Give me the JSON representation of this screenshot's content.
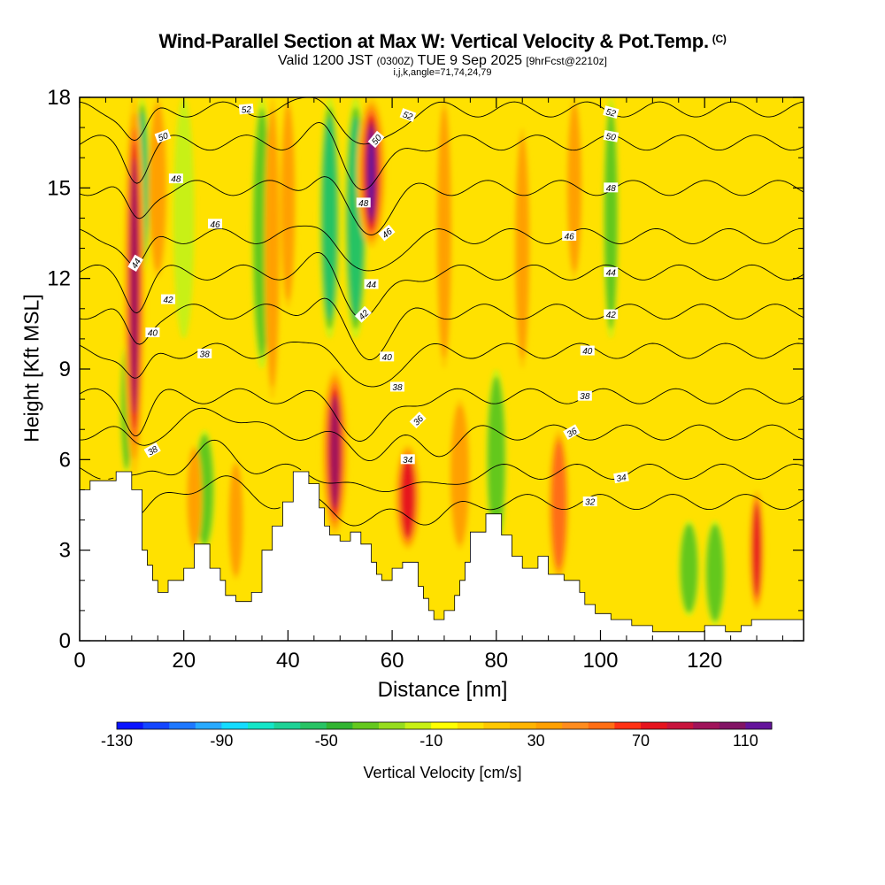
{
  "title": {
    "main": "Wind-Parallel Section at Max W: Vertical Velocity & Pot.Temp.",
    "copyright": "(C)",
    "valid_prefix": "Valid 1200 JST",
    "valid_zulu": "(0300Z)",
    "valid_date": "TUE 9 Sep 2025",
    "forecast": "[9hrFcst@2210z]",
    "indices": "i,j,k,angle=71,74,24,79"
  },
  "chart_data": {
    "type": "heatmap",
    "title": "Wind-Parallel Section at Max W: Vertical Velocity & Pot.Temp.",
    "xlabel": "Distance [nm]",
    "ylabel": "Height [Kft MSL]",
    "xlim": [
      0,
      139
    ],
    "ylim": [
      0,
      18
    ],
    "x_ticks": [
      0,
      20,
      40,
      60,
      80,
      100,
      120
    ],
    "y_ticks": [
      0,
      3,
      6,
      9,
      12,
      15,
      18
    ],
    "x_tick_labels": [
      "0",
      "20",
      "40",
      "60",
      "80",
      "100",
      "120"
    ],
    "y_tick_labels": [
      "0",
      "3",
      "6",
      "9",
      "12",
      "15",
      "18"
    ],
    "colorbar": {
      "label": "Vertical Velocity [cm/s]",
      "min": -130,
      "max": 120,
      "step": 10,
      "tick_values": [
        -130,
        -90,
        -50,
        -10,
        30,
        70,
        110
      ],
      "tick_labels": [
        "-130",
        "-90",
        "-50",
        "-10",
        "30",
        "70",
        "110"
      ],
      "colors": [
        "#0a14ff",
        "#1446ff",
        "#1e78ff",
        "#28aaff",
        "#14dcff",
        "#14e6c8",
        "#1ed296",
        "#28c364",
        "#32b432",
        "#64c81e",
        "#96dc1e",
        "#c8f014",
        "#ffff00",
        "#ffe100",
        "#ffc800",
        "#ffb400",
        "#ffa000",
        "#ff8c1e",
        "#ff6e14",
        "#ff3214",
        "#e6141e",
        "#c8143c",
        "#a0145a",
        "#821464",
        "#64149b"
      ]
    },
    "updrafts": [
      {
        "x": 10.5,
        "w": 2.0,
        "ybot": 5.5,
        "ytop": 18,
        "peak": 90
      },
      {
        "x": 15,
        "w": 1.8,
        "ybot": 12,
        "ytop": 18,
        "peak": 30
      },
      {
        "x": 22,
        "w": 1.5,
        "ybot": 3,
        "ytop": 6.5,
        "peak": 30
      },
      {
        "x": 30,
        "w": 1.5,
        "ybot": 2,
        "ytop": 6,
        "peak": 30
      },
      {
        "x": 37,
        "w": 1.5,
        "ybot": 8,
        "ytop": 18,
        "peak": 30
      },
      {
        "x": 40,
        "w": 1.5,
        "ybot": 11,
        "ytop": 18,
        "peak": 30
      },
      {
        "x": 49,
        "w": 2.5,
        "ybot": 3.5,
        "ytop": 9,
        "peak": 90
      },
      {
        "x": 56,
        "w": 2.8,
        "ybot": 13,
        "ytop": 18,
        "peak": 110
      },
      {
        "x": 63,
        "w": 2.5,
        "ybot": 3,
        "ytop": 6.5,
        "peak": 70
      },
      {
        "x": 70,
        "w": 1.5,
        "ybot": 9,
        "ytop": 18,
        "peak": 30
      },
      {
        "x": 73,
        "w": 2.0,
        "ybot": 3,
        "ytop": 8,
        "peak": 40
      },
      {
        "x": 85,
        "w": 1.5,
        "ybot": 9,
        "ytop": 17,
        "peak": 30
      },
      {
        "x": 92,
        "w": 2.0,
        "ybot": 2,
        "ytop": 7,
        "peak": 50
      },
      {
        "x": 95,
        "w": 1.5,
        "ybot": 12,
        "ytop": 18,
        "peak": 30
      },
      {
        "x": 130,
        "w": 1.5,
        "ybot": 1.0,
        "ytop": 5,
        "peak": 80
      }
    ],
    "downdrafts": [
      {
        "x": 9,
        "w": 1.2,
        "ybot": 5.5,
        "ytop": 10,
        "peak": -50
      },
      {
        "x": 12,
        "w": 1.5,
        "ybot": 12,
        "ytop": 18,
        "peak": -60
      },
      {
        "x": 20,
        "w": 2.0,
        "ybot": 10,
        "ytop": 18,
        "peak": -30
      },
      {
        "x": 24,
        "w": 2.0,
        "ybot": 3,
        "ytop": 7,
        "peak": -50
      },
      {
        "x": 35,
        "w": 2.0,
        "ybot": 9,
        "ytop": 18,
        "peak": -50
      },
      {
        "x": 48,
        "w": 2.0,
        "ybot": 10,
        "ytop": 18,
        "peak": -70
      },
      {
        "x": 53,
        "w": 2.2,
        "ybot": 10,
        "ytop": 18,
        "peak": -70
      },
      {
        "x": 80,
        "w": 2.0,
        "ybot": 3,
        "ytop": 9,
        "peak": -40
      },
      {
        "x": 102,
        "w": 1.5,
        "ybot": 10,
        "ytop": 18,
        "peak": -40
      },
      {
        "x": 117,
        "w": 2.0,
        "ybot": 0.8,
        "ytop": 4,
        "peak": -40
      },
      {
        "x": 122,
        "w": 2.0,
        "ybot": 0.5,
        "ytop": 4,
        "peak": -40
      }
    ],
    "contours": {
      "variable": "Potential temperature",
      "levels": [
        32,
        34,
        36,
        38,
        40,
        42,
        44,
        46,
        48,
        50,
        52
      ],
      "labels": [
        {
          "text": "52",
          "x": 32,
          "y": 17.6,
          "angle": -5
        },
        {
          "text": "52",
          "x": 63,
          "y": 17.4,
          "angle": 20
        },
        {
          "text": "52",
          "x": 102,
          "y": 17.5,
          "angle": 15
        },
        {
          "text": "50",
          "x": 16,
          "y": 16.7,
          "angle": -20
        },
        {
          "text": "50",
          "x": 57,
          "y": 16.6,
          "angle": -50
        },
        {
          "text": "50",
          "x": 102,
          "y": 16.7,
          "angle": 10
        },
        {
          "text": "48",
          "x": 18.5,
          "y": 15.3,
          "angle": 0
        },
        {
          "text": "48",
          "x": 54.5,
          "y": 14.5,
          "angle": 0
        },
        {
          "text": "48",
          "x": 102,
          "y": 15.0,
          "angle": 0
        },
        {
          "text": "46",
          "x": 26,
          "y": 13.8,
          "angle": 0
        },
        {
          "text": "46",
          "x": 59,
          "y": 13.5,
          "angle": -40
        },
        {
          "text": "46",
          "x": 94,
          "y": 13.4,
          "angle": 0
        },
        {
          "text": "44",
          "x": 10.8,
          "y": 12.5,
          "angle": -60
        },
        {
          "text": "44",
          "x": 56,
          "y": 11.8,
          "angle": 0
        },
        {
          "text": "44",
          "x": 102,
          "y": 12.2,
          "angle": 0
        },
        {
          "text": "42",
          "x": 17,
          "y": 11.3,
          "angle": 0
        },
        {
          "text": "42",
          "x": 54.5,
          "y": 10.8,
          "angle": -45
        },
        {
          "text": "42",
          "x": 102,
          "y": 10.8,
          "angle": 0
        },
        {
          "text": "40",
          "x": 14,
          "y": 10.2,
          "angle": 0
        },
        {
          "text": "40",
          "x": 59,
          "y": 9.4,
          "angle": 0
        },
        {
          "text": "40",
          "x": 97.5,
          "y": 9.6,
          "angle": 0
        },
        {
          "text": "38",
          "x": 24,
          "y": 9.5,
          "angle": 0
        },
        {
          "text": "38",
          "x": 61,
          "y": 8.4,
          "angle": 0
        },
        {
          "text": "38",
          "x": 97,
          "y": 8.1,
          "angle": 0
        },
        {
          "text": "38",
          "x": 14,
          "y": 6.3,
          "angle": -30
        },
        {
          "text": "36",
          "x": 65,
          "y": 7.3,
          "angle": -45
        },
        {
          "text": "36",
          "x": 94.5,
          "y": 6.9,
          "angle": -30
        },
        {
          "text": "34",
          "x": 63,
          "y": 6.0,
          "angle": 0
        },
        {
          "text": "34",
          "x": 104,
          "y": 5.4,
          "angle": -10
        },
        {
          "text": "32",
          "x": 98,
          "y": 4.6,
          "angle": 0
        }
      ]
    },
    "terrain": [
      [
        0,
        5.0
      ],
      [
        2,
        5.0
      ],
      [
        2,
        5.3
      ],
      [
        7,
        5.3
      ],
      [
        7,
        5.6
      ],
      [
        10,
        5.6
      ],
      [
        10,
        5.0
      ],
      [
        12,
        5.0
      ],
      [
        12,
        3.0
      ],
      [
        13,
        3.0
      ],
      [
        13,
        2.5
      ],
      [
        14,
        2.5
      ],
      [
        14,
        2.0
      ],
      [
        15,
        2.0
      ],
      [
        15,
        1.6
      ],
      [
        17,
        1.6
      ],
      [
        17,
        2.0
      ],
      [
        20,
        2.0
      ],
      [
        20,
        2.4
      ],
      [
        22,
        2.4
      ],
      [
        22,
        3.2
      ],
      [
        25,
        3.2
      ],
      [
        25,
        2.4
      ],
      [
        27,
        2.4
      ],
      [
        27,
        2.0
      ],
      [
        28,
        2.0
      ],
      [
        28,
        1.5
      ],
      [
        30,
        1.5
      ],
      [
        30,
        1.3
      ],
      [
        33,
        1.3
      ],
      [
        33,
        1.6
      ],
      [
        35,
        1.6
      ],
      [
        35,
        3.0
      ],
      [
        37,
        3.0
      ],
      [
        37,
        3.8
      ],
      [
        39,
        3.8
      ],
      [
        39,
        4.6
      ],
      [
        41,
        4.6
      ],
      [
        41,
        5.6
      ],
      [
        44,
        5.6
      ],
      [
        44,
        5.2
      ],
      [
        46,
        5.2
      ],
      [
        46,
        4.4
      ],
      [
        47,
        4.4
      ],
      [
        47,
        3.8
      ],
      [
        48,
        3.8
      ],
      [
        48,
        3.5
      ],
      [
        50,
        3.5
      ],
      [
        50,
        3.3
      ],
      [
        52,
        3.3
      ],
      [
        52,
        3.6
      ],
      [
        54,
        3.6
      ],
      [
        54,
        3.2
      ],
      [
        56,
        3.2
      ],
      [
        56,
        2.6
      ],
      [
        57,
        2.6
      ],
      [
        57,
        2.2
      ],
      [
        58,
        2.2
      ],
      [
        58,
        2.0
      ],
      [
        60,
        2.0
      ],
      [
        60,
        2.4
      ],
      [
        62,
        2.4
      ],
      [
        62,
        2.6
      ],
      [
        65,
        2.6
      ],
      [
        65,
        1.8
      ],
      [
        66,
        1.8
      ],
      [
        66,
        1.4
      ],
      [
        67,
        1.4
      ],
      [
        67,
        1.0
      ],
      [
        68,
        1.0
      ],
      [
        68,
        0.7
      ],
      [
        70,
        0.7
      ],
      [
        70,
        1.0
      ],
      [
        72,
        1.0
      ],
      [
        72,
        1.5
      ],
      [
        73,
        1.5
      ],
      [
        73,
        2.0
      ],
      [
        74,
        2.0
      ],
      [
        74,
        2.6
      ],
      [
        75,
        2.6
      ],
      [
        75,
        3.6
      ],
      [
        78,
        3.6
      ],
      [
        78,
        4.2
      ],
      [
        81,
        4.2
      ],
      [
        81,
        3.5
      ],
      [
        83,
        3.5
      ],
      [
        83,
        2.8
      ],
      [
        85,
        2.8
      ],
      [
        85,
        2.4
      ],
      [
        88,
        2.4
      ],
      [
        88,
        2.8
      ],
      [
        90,
        2.8
      ],
      [
        90,
        2.2
      ],
      [
        93,
        2.2
      ],
      [
        93,
        2.0
      ],
      [
        96,
        2.0
      ],
      [
        96,
        1.6
      ],
      [
        97,
        1.6
      ],
      [
        97,
        1.2
      ],
      [
        99,
        1.2
      ],
      [
        99,
        0.9
      ],
      [
        102,
        0.9
      ],
      [
        102,
        0.7
      ],
      [
        106,
        0.7
      ],
      [
        106,
        0.5
      ],
      [
        110,
        0.5
      ],
      [
        110,
        0.3
      ],
      [
        120,
        0.3
      ],
      [
        120,
        0.5
      ],
      [
        124,
        0.5
      ],
      [
        124,
        0.3
      ],
      [
        127,
        0.3
      ],
      [
        127,
        0.5
      ],
      [
        129,
        0.5
      ],
      [
        129,
        0.7
      ],
      [
        139,
        0.7
      ]
    ]
  }
}
